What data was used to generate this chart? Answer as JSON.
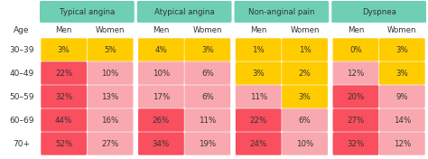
{
  "categories": [
    "Typical angina",
    "Atypical angina",
    "Non-anginal pain",
    "Dyspnea"
  ],
  "age_labels": [
    "30–39",
    "40–49",
    "50–59",
    "60–69",
    "70+"
  ],
  "sub_headers": [
    "Men",
    "Women"
  ],
  "data": {
    "Typical angina": {
      "Men": [
        "3%",
        "22%",
        "32%",
        "44%",
        "52%"
      ],
      "Women": [
        "5%",
        "10%",
        "13%",
        "16%",
        "27%"
      ]
    },
    "Atypical angina": {
      "Men": [
        "4%",
        "10%",
        "17%",
        "26%",
        "34%"
      ],
      "Women": [
        "3%",
        "6%",
        "6%",
        "11%",
        "19%"
      ]
    },
    "Non-anginal pain": {
      "Men": [
        "1%",
        "3%",
        "11%",
        "22%",
        "24%"
      ],
      "Women": [
        "1%",
        "2%",
        "3%",
        "6%",
        "10%"
      ]
    },
    "Dyspnea": {
      "Men": [
        "0%",
        "12%",
        "20%",
        "27%",
        "32%"
      ],
      "Women": [
        "3%",
        "3%",
        "9%",
        "14%",
        "12%"
      ]
    }
  },
  "colors": {
    "Typical angina": {
      "Men": [
        "#FFCC00",
        "#F94F5E",
        "#F94F5E",
        "#F94F5E",
        "#F94F5E"
      ],
      "Women": [
        "#FFCC00",
        "#F9A8B0",
        "#F9A8B0",
        "#F9A8B0",
        "#F9A8B0"
      ]
    },
    "Atypical angina": {
      "Men": [
        "#FFCC00",
        "#F9A8B0",
        "#F9A8B0",
        "#F94F5E",
        "#F94F5E"
      ],
      "Women": [
        "#FFCC00",
        "#F9A8B0",
        "#F9A8B0",
        "#F9A8B0",
        "#F9A8B0"
      ]
    },
    "Non-anginal pain": {
      "Men": [
        "#FFCC00",
        "#FFCC00",
        "#F9A8B0",
        "#F94F5E",
        "#F94F5E"
      ],
      "Women": [
        "#FFCC00",
        "#FFCC00",
        "#FFCC00",
        "#F9A8B0",
        "#F9A8B0"
      ]
    },
    "Dyspnea": {
      "Men": [
        "#FFCC00",
        "#F9A8B0",
        "#F94F5E",
        "#F94F5E",
        "#F94F5E"
      ],
      "Women": [
        "#FFCC00",
        "#FFCC00",
        "#F9A8B0",
        "#F9A8B0",
        "#F9A8B0"
      ]
    }
  },
  "header_color": "#6ECFB5",
  "bg_color": "#FFFFFF",
  "text_color": "#333333",
  "header_text_color": "#333333",
  "figsize": [
    4.74,
    1.76
  ],
  "dpi": 100
}
